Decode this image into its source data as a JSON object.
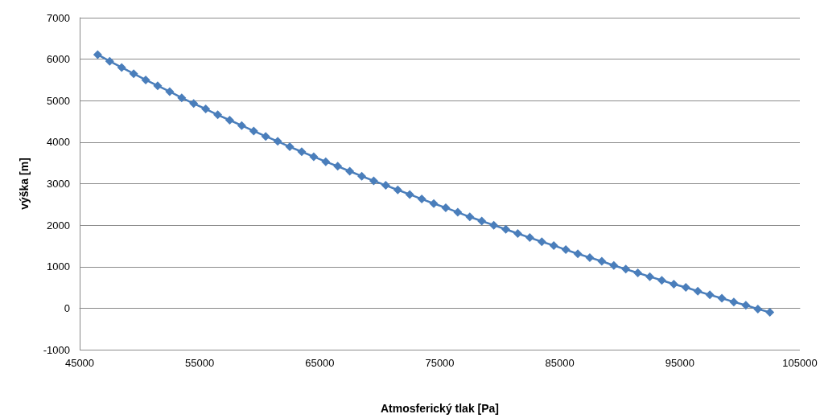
{
  "chart_data": {
    "type": "line",
    "xlabel": "Atmosferický tlak [Pa]",
    "ylabel": "výška [m]",
    "x": [
      46500,
      47500,
      48500,
      49500,
      50500,
      51500,
      52500,
      53500,
      54500,
      55500,
      56500,
      57500,
      58500,
      59500,
      60500,
      61500,
      62500,
      63500,
      64500,
      65500,
      66500,
      67500,
      68500,
      69500,
      70500,
      71500,
      72500,
      73500,
      74500,
      75500,
      76500,
      77500,
      78500,
      79500,
      80500,
      81500,
      82500,
      83500,
      84500,
      85500,
      86500,
      87500,
      88500,
      89500,
      90500,
      91500,
      92500,
      93500,
      94500,
      95500,
      96500,
      97500,
      98500,
      99500,
      100500,
      101500,
      102500
    ],
    "series": [
      {
        "color": "#4a7ebb",
        "values": [
          6110,
          5950,
          5800,
          5650,
          5500,
          5360,
          5220,
          5070,
          4930,
          4800,
          4660,
          4530,
          4400,
          4270,
          4140,
          4020,
          3890,
          3770,
          3650,
          3530,
          3420,
          3300,
          3180,
          3070,
          2960,
          2850,
          2740,
          2630,
          2520,
          2420,
          2310,
          2200,
          2100,
          2000,
          1900,
          1800,
          1700,
          1600,
          1510,
          1410,
          1310,
          1220,
          1130,
          1030,
          940,
          850,
          760,
          670,
          580,
          500,
          410,
          320,
          240,
          150,
          70,
          -20,
          -100
        ]
      }
    ],
    "xlim": [
      45000,
      105000
    ],
    "xticks": [
      45000,
      55000,
      65000,
      75000,
      85000,
      95000,
      105000
    ],
    "ylim": [
      -1000,
      7000
    ],
    "yticks": [
      -1000,
      0,
      1000,
      2000,
      3000,
      4000,
      5000,
      6000,
      7000
    ],
    "grid": "y",
    "marker": "diamond",
    "line_style": "solid"
  }
}
